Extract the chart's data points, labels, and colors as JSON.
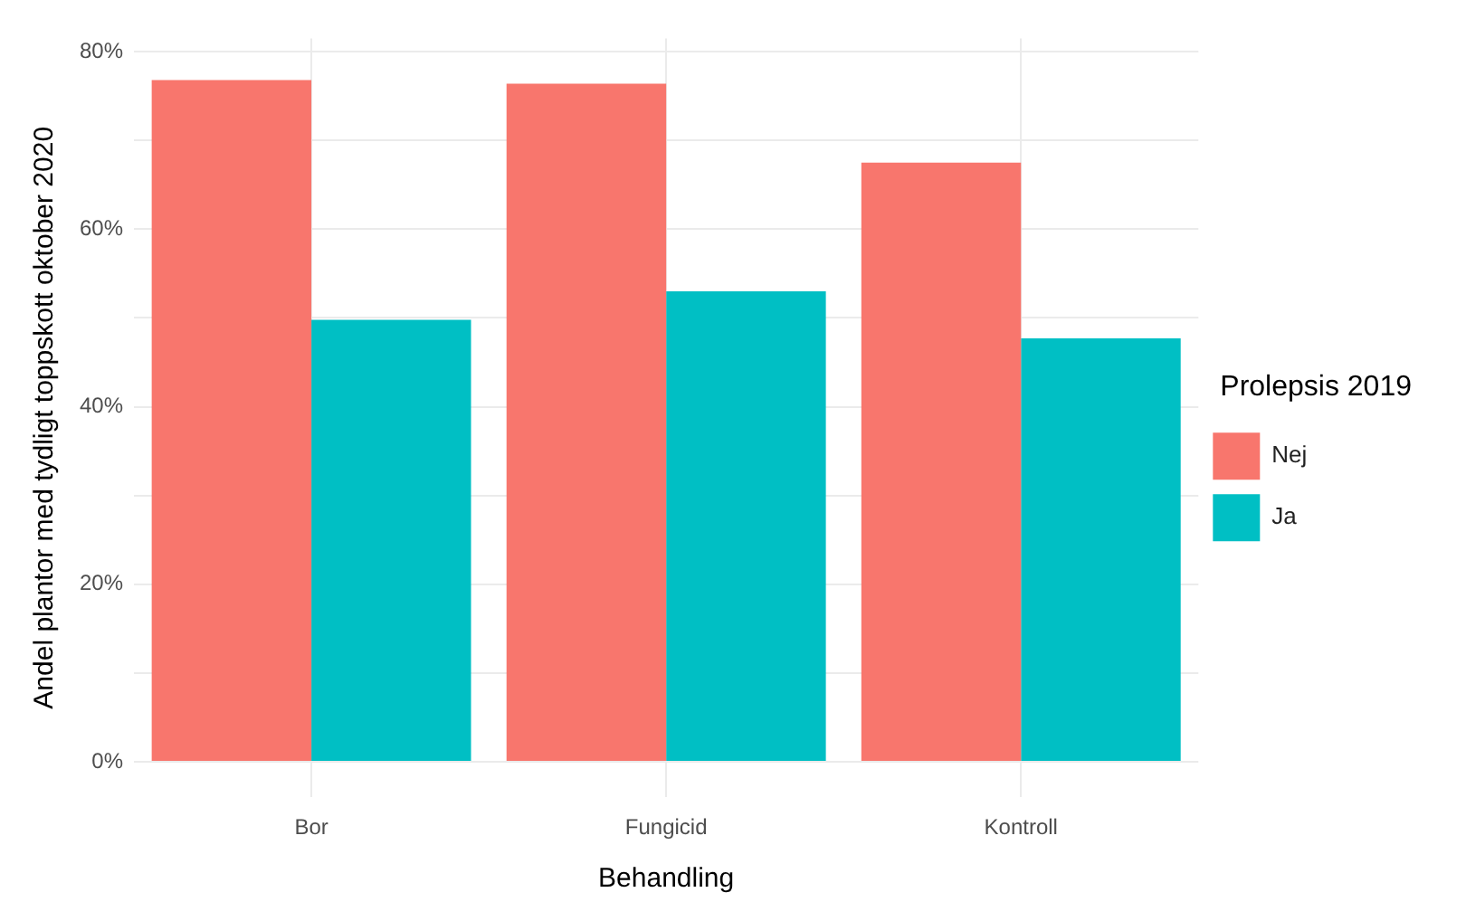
{
  "chart_data": {
    "type": "bar",
    "xlabel": "Behandling",
    "ylabel": "Andel plantor med tydligt toppskott oktober 2020",
    "legend_title": "Prolepsis 2019",
    "categories": [
      "Bor",
      "Fungicid",
      "Kontroll"
    ],
    "series": [
      {
        "name": "Nej",
        "color": "#f8766d",
        "values": [
          76.8,
          76.4,
          67.5
        ]
      },
      {
        "name": "Ja",
        "color": "#00bfc4",
        "values": [
          49.8,
          53.0,
          47.7
        ]
      }
    ],
    "ylim": [
      -4,
      81.5
    ],
    "yticks": [
      {
        "value": 0,
        "label": "0%"
      },
      {
        "value": 10,
        "label": null
      },
      {
        "value": 20,
        "label": "20%"
      },
      {
        "value": 30,
        "label": null
      },
      {
        "value": 40,
        "label": "40%"
      },
      {
        "value": 50,
        "label": null
      },
      {
        "value": 60,
        "label": "60%"
      },
      {
        "value": 70,
        "label": null
      },
      {
        "value": 80,
        "label": "80%"
      }
    ],
    "grid": true,
    "legend": "right"
  }
}
